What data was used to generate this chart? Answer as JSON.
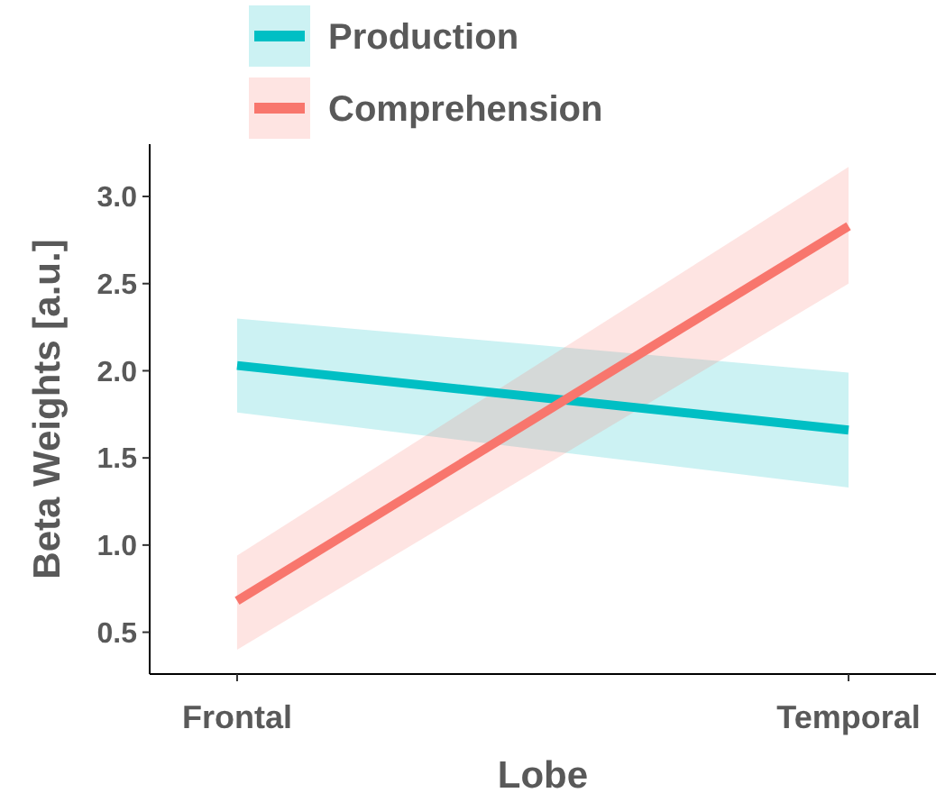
{
  "chart_data": {
    "type": "line",
    "xlabel": "Lobe",
    "ylabel": "Beta Weights [a.u.]",
    "categories": [
      "Frontal",
      "Temporal"
    ],
    "series": [
      {
        "name": "Production",
        "color": "#00bfc4",
        "values": [
          2.03,
          1.66
        ],
        "lower": [
          1.76,
          1.33
        ],
        "upper": [
          2.3,
          1.99
        ]
      },
      {
        "name": "Comprehension",
        "color": "#f8766d",
        "values": [
          0.68,
          2.83
        ],
        "lower": [
          0.4,
          2.5
        ],
        "upper": [
          0.94,
          3.17
        ]
      }
    ],
    "ylim": [
      0.26,
      3.3
    ],
    "yticks": [
      {
        "value": 0.5,
        "label": "0.5"
      },
      {
        "value": 1,
        "label": "1.0"
      },
      {
        "value": 1.5,
        "label": "1.5"
      },
      {
        "value": 2,
        "label": "2.0"
      },
      {
        "value": 2.5,
        "label": "2.5"
      },
      {
        "value": 3,
        "label": "3.0"
      }
    ],
    "legend": "top",
    "grid": false
  }
}
